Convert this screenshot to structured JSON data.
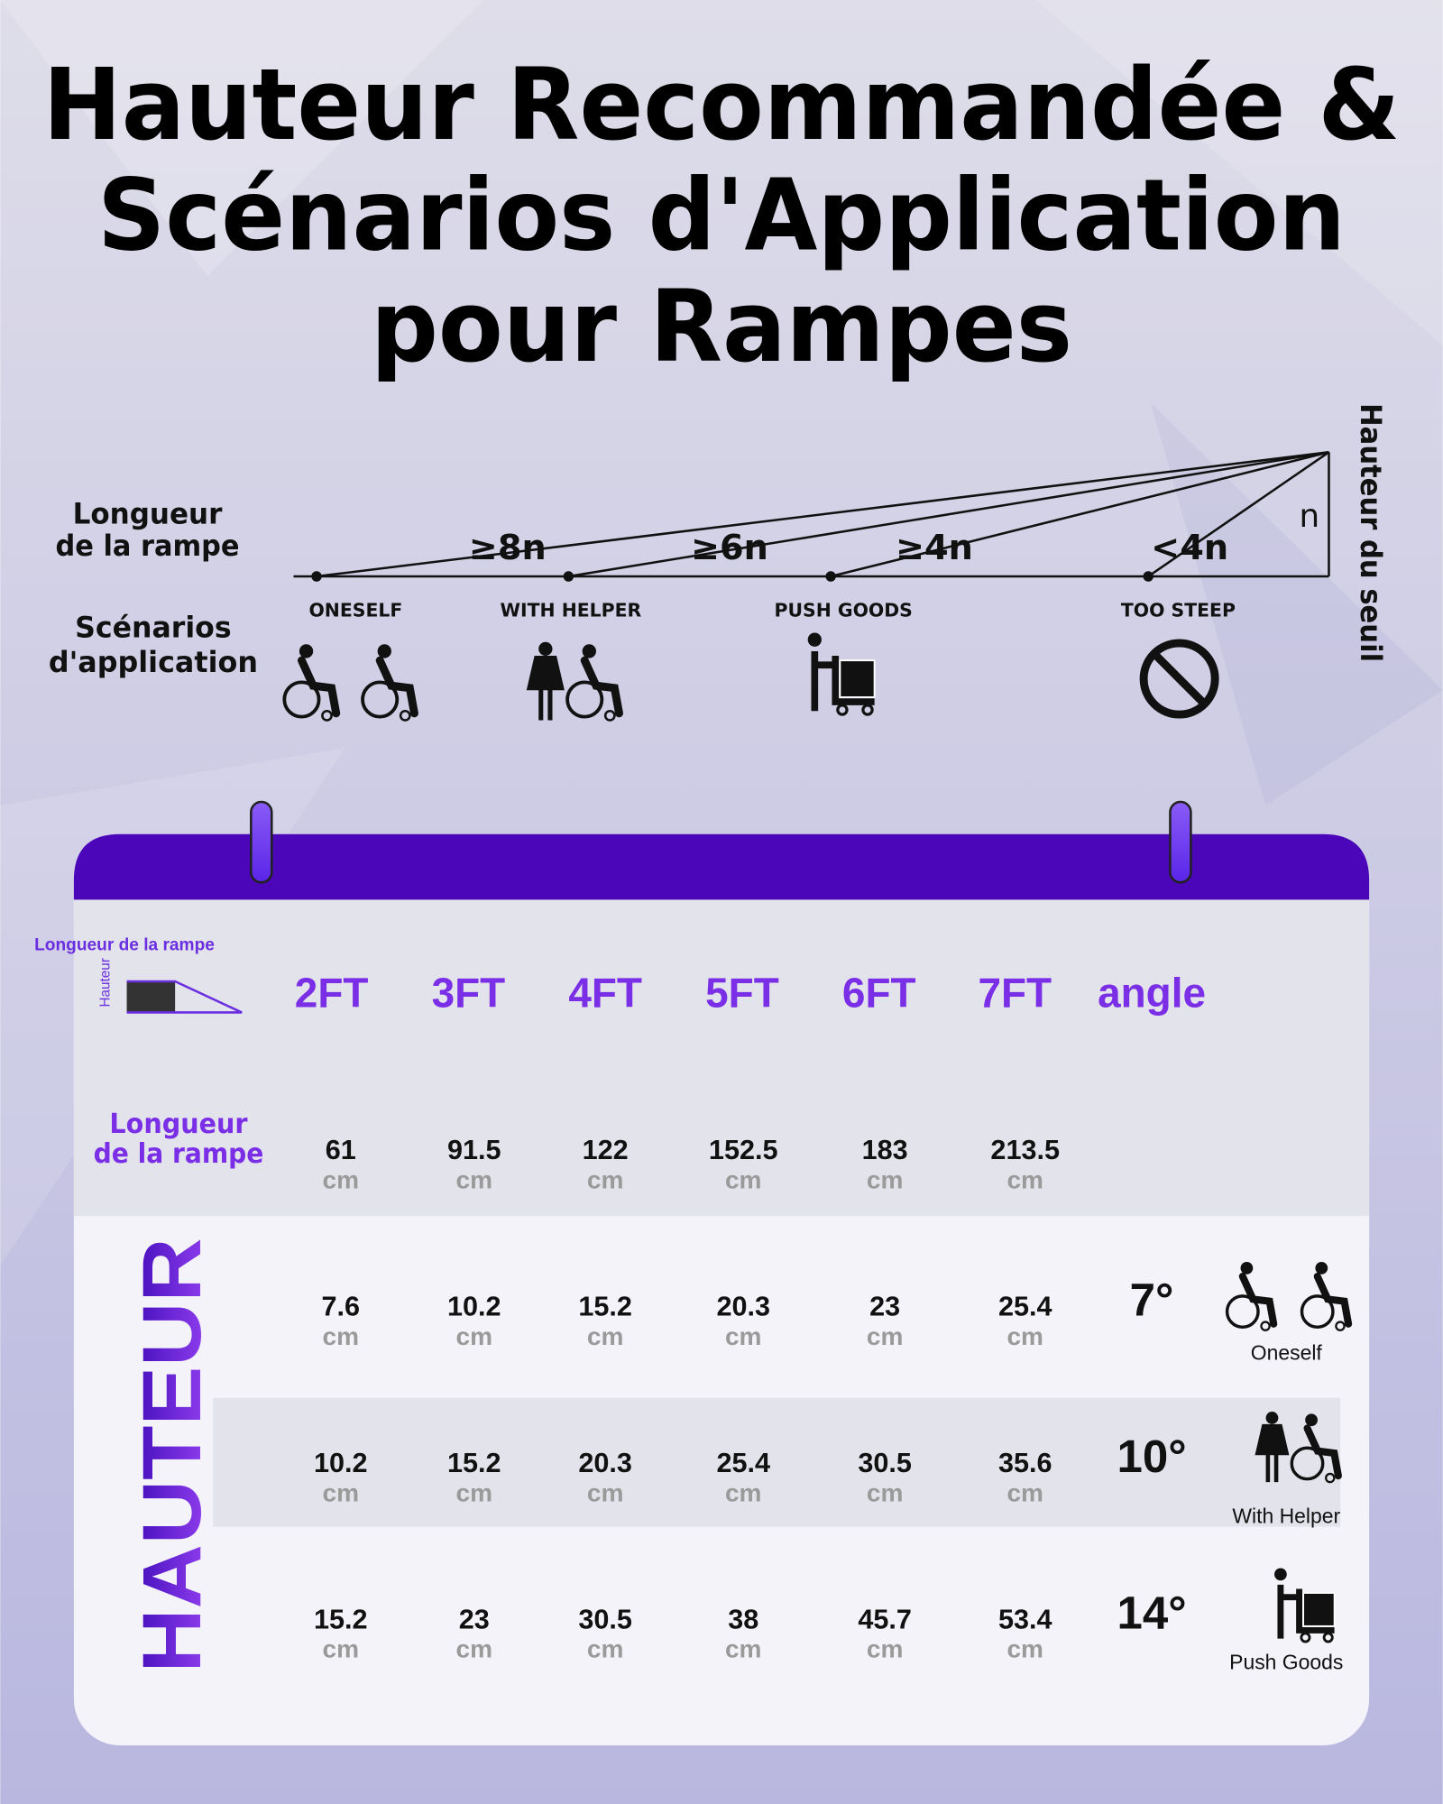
{
  "title": [
    "Hauteur Recommandée &",
    "Scénarios d'Application",
    "pour Rampes"
  ],
  "diagram": {
    "length_label": [
      "Longueur",
      "de la rampe"
    ],
    "scenarios_label": [
      "Scénarios",
      "d'application"
    ],
    "height_label": "Hauteur du seuil",
    "height_symbol": "n",
    "ratios": [
      "≥8n",
      "≥6n",
      "≥4n",
      "<4n"
    ],
    "scenarios": [
      "ONESELF",
      "WITH HELPER",
      "PUSH GOODS",
      "TOO STEEP"
    ]
  },
  "table": {
    "legend": {
      "height": "Hauteur",
      "length": "Longueur de la rampe"
    },
    "columns": [
      "2FT",
      "3FT",
      "4FT",
      "5FT",
      "6FT",
      "7FT",
      "angle"
    ],
    "length_row": {
      "label": [
        "Longueur",
        "de la rampe"
      ],
      "cells": [
        {
          "value": "61",
          "unit": "cm"
        },
        {
          "value": "91.5",
          "unit": "cm"
        },
        {
          "value": "122",
          "unit": "cm"
        },
        {
          "value": "152.5",
          "unit": "cm"
        },
        {
          "value": "183",
          "unit": "cm"
        },
        {
          "value": "213.5",
          "unit": "cm"
        }
      ]
    },
    "side_label": "HAUTEUR",
    "rows": [
      {
        "cells": [
          {
            "value": "7.6",
            "unit": "cm"
          },
          {
            "value": "10.2",
            "unit": "cm"
          },
          {
            "value": "15.2",
            "unit": "cm"
          },
          {
            "value": "20.3",
            "unit": "cm"
          },
          {
            "value": "23",
            "unit": "cm"
          },
          {
            "value": "25.4",
            "unit": "cm"
          }
        ],
        "angle": "7°",
        "scenario": "Oneself"
      },
      {
        "cells": [
          {
            "value": "10.2",
            "unit": "cm"
          },
          {
            "value": "15.2",
            "unit": "cm"
          },
          {
            "value": "20.3",
            "unit": "cm"
          },
          {
            "value": "25.4",
            "unit": "cm"
          },
          {
            "value": "30.5",
            "unit": "cm"
          },
          {
            "value": "35.6",
            "unit": "cm"
          }
        ],
        "angle": "10°",
        "scenario": "With Helper"
      },
      {
        "cells": [
          {
            "value": "15.2",
            "unit": "cm"
          },
          {
            "value": "23",
            "unit": "cm"
          },
          {
            "value": "30.5",
            "unit": "cm"
          },
          {
            "value": "38",
            "unit": "cm"
          },
          {
            "value": "45.7",
            "unit": "cm"
          },
          {
            "value": "53.4",
            "unit": "cm"
          }
        ],
        "angle": "14°",
        "scenario": "Push Goods"
      }
    ]
  }
}
